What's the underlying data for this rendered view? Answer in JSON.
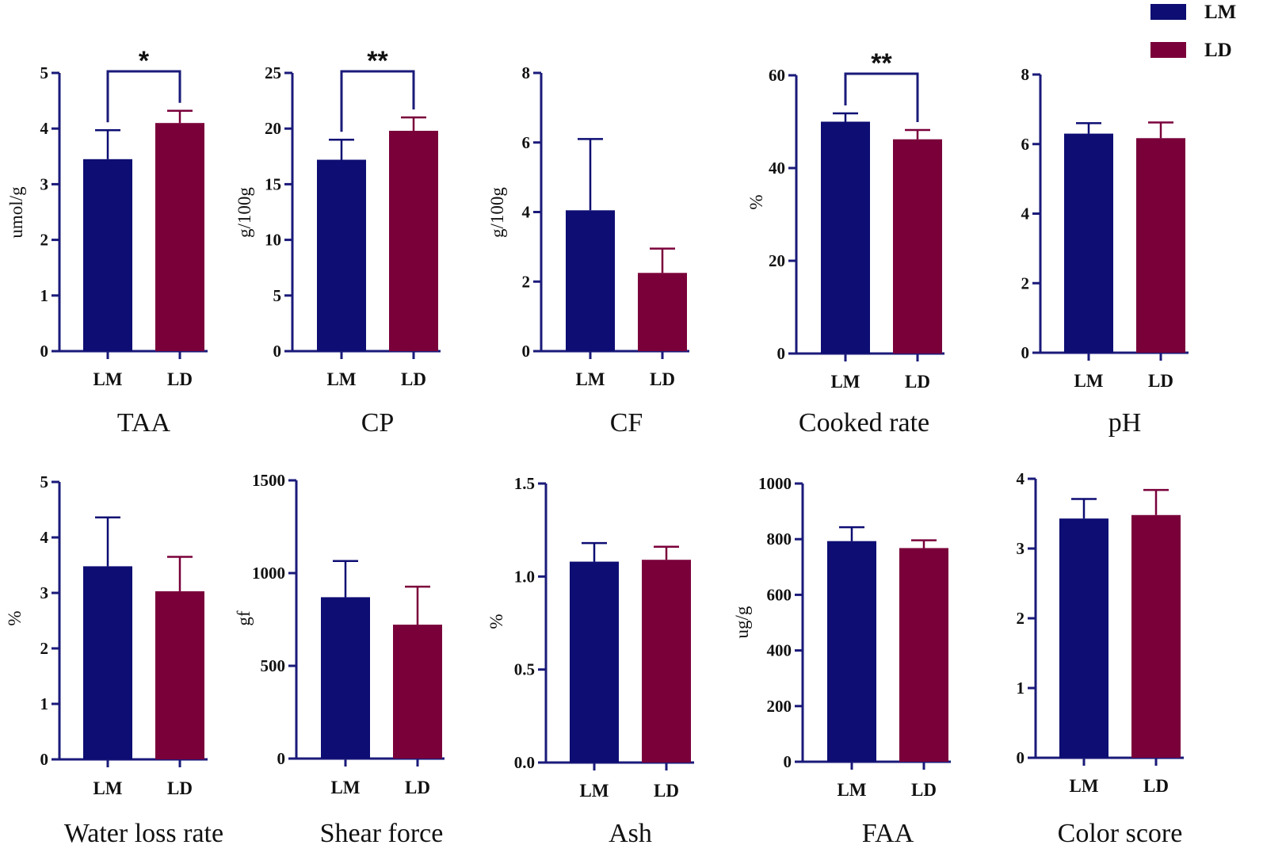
{
  "legend": [
    {
      "label": "LM",
      "color": "#0d0d73"
    },
    {
      "label": "LD",
      "color": "#7a003a"
    }
  ],
  "colors": {
    "LM": "#0d0d73",
    "LD": "#7a003a",
    "axis": "#1a1a7a"
  },
  "chart_data": [
    {
      "type": "bar",
      "title": "TAA",
      "ylabel": "umol/g",
      "categories": [
        "LM",
        "LD"
      ],
      "values": [
        3.45,
        4.1
      ],
      "errors": [
        0.52,
        0.22
      ],
      "ylim": [
        0,
        5
      ],
      "yticks": [
        "0",
        "1",
        "2",
        "3",
        "4",
        "5"
      ],
      "tick_values": [
        0,
        1,
        2,
        3,
        4,
        5
      ],
      "significance": "*"
    },
    {
      "type": "bar",
      "title": "CP",
      "ylabel": "g/100g",
      "categories": [
        "LM",
        "LD"
      ],
      "values": [
        17.2,
        19.8
      ],
      "errors": [
        1.8,
        1.2
      ],
      "ylim": [
        0,
        25
      ],
      "yticks": [
        "0",
        "5",
        "10",
        "15",
        "20",
        "25"
      ],
      "tick_values": [
        0,
        5,
        10,
        15,
        20,
        25
      ],
      "significance": "**"
    },
    {
      "type": "bar",
      "title": "CF",
      "ylabel": "g/100g",
      "categories": [
        "LM",
        "LD"
      ],
      "values": [
        4.05,
        2.25
      ],
      "errors": [
        2.05,
        0.7
      ],
      "ylim": [
        0,
        8
      ],
      "yticks": [
        "0",
        "2",
        "4",
        "6",
        "8"
      ],
      "tick_values": [
        0,
        2,
        4,
        6,
        8
      ],
      "significance": ""
    },
    {
      "type": "bar",
      "title": "Cooked rate",
      "ylabel": "%",
      "categories": [
        "LM",
        "LD"
      ],
      "values": [
        50,
        46.2
      ],
      "errors": [
        1.8,
        2.0
      ],
      "ylim": [
        0,
        60
      ],
      "yticks": [
        "0",
        "20",
        "40",
        "60"
      ],
      "tick_values": [
        0,
        20,
        40,
        60
      ],
      "significance": "**"
    },
    {
      "type": "bar",
      "title": "pH",
      "ylabel": "",
      "categories": [
        "LM",
        "LD"
      ],
      "values": [
        6.3,
        6.17
      ],
      "errors": [
        0.3,
        0.45
      ],
      "ylim": [
        0,
        8
      ],
      "yticks": [
        "0",
        "2",
        "4",
        "6",
        "8"
      ],
      "tick_values": [
        0,
        2,
        4,
        6,
        8
      ],
      "significance": ""
    },
    {
      "type": "bar",
      "title": "Water loss rate",
      "ylabel": "%",
      "categories": [
        "LM",
        "LD"
      ],
      "values": [
        3.48,
        3.03
      ],
      "errors": [
        0.88,
        0.62
      ],
      "ylim": [
        0,
        5
      ],
      "yticks": [
        "0",
        "1",
        "2",
        "3",
        "4",
        "5"
      ],
      "tick_values": [
        0,
        1,
        2,
        3,
        4,
        5
      ],
      "significance": ""
    },
    {
      "type": "bar",
      "title": "Shear force",
      "ylabel": "gf",
      "categories": [
        "LM",
        "LD"
      ],
      "values": [
        870,
        722
      ],
      "errors": [
        195,
        205
      ],
      "ylim": [
        0,
        1500
      ],
      "yticks": [
        "0",
        "500",
        "1000",
        "1500"
      ],
      "tick_values": [
        0,
        500,
        1000,
        1500
      ],
      "significance": ""
    },
    {
      "type": "bar",
      "title": "Ash",
      "ylabel": "%",
      "categories": [
        "LM",
        "LD"
      ],
      "values": [
        1.08,
        1.09
      ],
      "errors": [
        0.1,
        0.07
      ],
      "ylim": [
        0,
        1.5
      ],
      "yticks": [
        "0.0",
        "0.5",
        "1.0",
        "1.5"
      ],
      "tick_values": [
        0,
        0.5,
        1.0,
        1.5
      ],
      "significance": ""
    },
    {
      "type": "bar",
      "title": "FAA",
      "ylabel": "ug/g",
      "categories": [
        "LM",
        "LD"
      ],
      "values": [
        793,
        768
      ],
      "errors": [
        50,
        28
      ],
      "ylim": [
        0,
        1000
      ],
      "yticks": [
        "0",
        "200",
        "400",
        "600",
        "800",
        "1000"
      ],
      "tick_values": [
        0,
        200,
        400,
        600,
        800,
        1000
      ],
      "significance": ""
    },
    {
      "type": "bar",
      "title": "Color score",
      "ylabel": "",
      "categories": [
        "LM",
        "LD"
      ],
      "values": [
        3.43,
        3.48
      ],
      "errors": [
        0.28,
        0.36
      ],
      "ylim": [
        0,
        4
      ],
      "yticks": [
        "0",
        "1",
        "2",
        "3",
        "4"
      ],
      "tick_values": [
        0,
        1,
        2,
        3,
        4
      ],
      "significance": ""
    }
  ]
}
